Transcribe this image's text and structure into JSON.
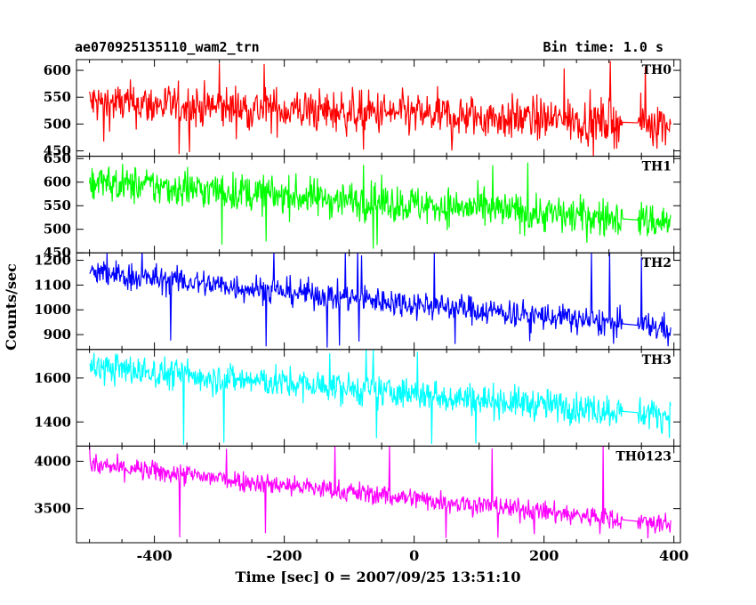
{
  "chart_data": {
    "type": "line",
    "title": "ae070925135110_wam2_trn",
    "bin_time_label": "Bin time: 1.0 s",
    "xlabel": "Time [sec] 0 = 2007/09/25 13:51:10",
    "ylabel": "Counts/sec",
    "xlim": [
      -520,
      410
    ],
    "xticks": [
      -400,
      -200,
      0,
      200,
      400
    ],
    "x_range_data": [
      -500,
      395
    ],
    "data_gap": [
      320,
      345
    ],
    "grid": false,
    "panels": [
      {
        "name": "TH0",
        "color": "#ff0000",
        "ylim": [
          440,
          620
        ],
        "yticks": [
          450,
          500,
          550,
          600
        ],
        "start": 540,
        "end": 500,
        "noise": 25,
        "spikes": [
          450,
          615
        ]
      },
      {
        "name": "TH1",
        "color": "#00ff00",
        "ylim": [
          450,
          655
        ],
        "yticks": [
          450,
          500,
          550,
          600,
          650
        ],
        "start": 600,
        "end": 515,
        "noise": 25,
        "spikes": [
          470,
          640
        ]
      },
      {
        "name": "TH2",
        "color": "#0000ff",
        "ylim": [
          840,
          1230
        ],
        "yticks": [
          900,
          1000,
          1100,
          1200
        ],
        "start": 1150,
        "end": 925,
        "noise": 35,
        "spikes": [
          870,
          1230
        ]
      },
      {
        "name": "TH3",
        "color": "#00ffff",
        "ylim": [
          1290,
          1730
        ],
        "yticks": [
          1400,
          1600
        ],
        "start": 1650,
        "end": 1430,
        "noise": 45,
        "spikes": [
          1310,
          1730
        ]
      },
      {
        "name": "TH0123",
        "color": "#ff00ff",
        "ylim": [
          3140,
          4160
        ],
        "yticks": [
          3500,
          4000
        ],
        "start": 3960,
        "end": 3330,
        "noise": 70,
        "spikes": [
          3200,
          4150
        ]
      }
    ]
  }
}
